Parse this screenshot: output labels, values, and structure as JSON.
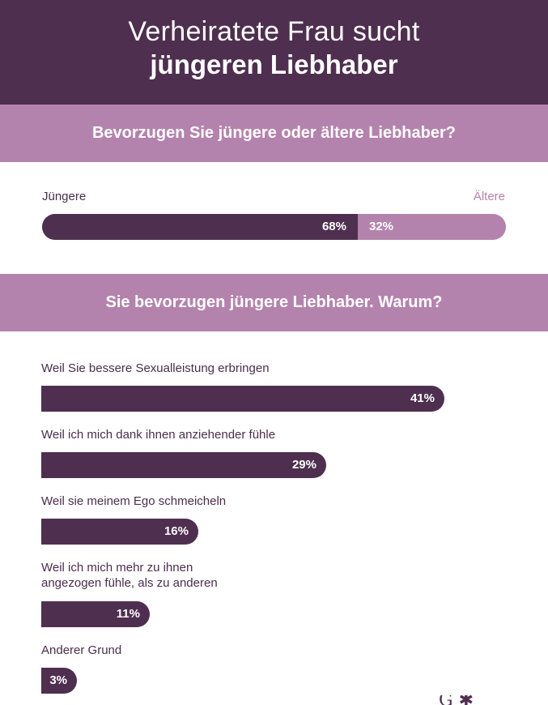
{
  "header": {
    "title_line1": "Verheiratete Frau sucht",
    "title_line2": "jüngeren Liebhaber"
  },
  "colors": {
    "dark": "#4f2f4f",
    "light": "#b483ad"
  },
  "chart_data": [
    {
      "type": "bar",
      "title": "Bevorzugen Sie jüngere oder ältere Liebhaber?",
      "categories": [
        "Jüngere",
        "Ältere"
      ],
      "values": [
        68,
        32
      ],
      "value_labels": [
        "68%",
        "32%"
      ],
      "unit": "%",
      "stacked": true,
      "ylim": [
        0,
        100
      ]
    },
    {
      "type": "bar",
      "title": "Sie bevorzugen jüngere Liebhaber. Warum?",
      "orientation": "horizontal",
      "categories": [
        "Weil Sie bessere Sexualleistung erbringen",
        "Weil ich mich dank ihnen anziehender fühle",
        "Weil sie meinem Ego schmeicheln",
        "Weil ich mich mehr zu ihnen angezogen fühle, als zu anderen",
        "Anderer Grund"
      ],
      "label_lines": [
        [
          "Weil Sie bessere Sexualleistung erbringen"
        ],
        [
          "Weil ich mich dank ihnen anziehender fühle"
        ],
        [
          "Weil sie meinem Ego schmeicheln"
        ],
        [
          "Weil ich mich mehr zu ihnen",
          "angezogen fühle, als zu anderen"
        ],
        [
          "Anderer Grund"
        ]
      ],
      "values": [
        41,
        29,
        16,
        11,
        3
      ],
      "value_labels": [
        "41%",
        "29%",
        "16%",
        "11%",
        "3%"
      ],
      "unit": "%"
    }
  ]
}
